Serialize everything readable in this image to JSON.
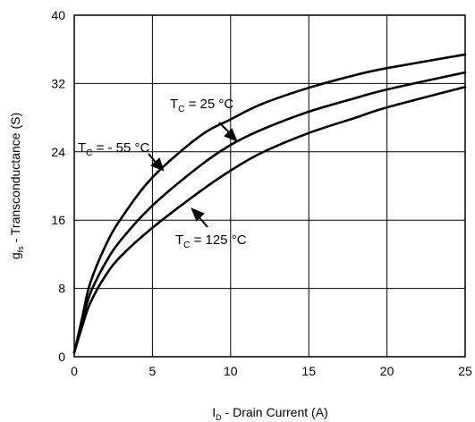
{
  "chart_data": {
    "type": "line",
    "xlabel": {
      "main": "I",
      "sub": "D",
      "rest": " - Drain Current (A)"
    },
    "ylabel": {
      "main": "g",
      "sub": "fs",
      "rest": " - Transconductance (S)"
    },
    "xlim": [
      0,
      25
    ],
    "ylim": [
      0,
      40
    ],
    "x_ticks": [
      "0",
      "5",
      "10",
      "15",
      "20",
      "25"
    ],
    "y_ticks": [
      "0",
      "8",
      "16",
      "24",
      "32",
      "40"
    ],
    "grid": true,
    "series": [
      {
        "name": "T_C = - 55 °C",
        "x": [
          0,
          0.5,
          1,
          2,
          3,
          5,
          8,
          10,
          12,
          15,
          18,
          20,
          25
        ],
        "y": [
          0.5,
          4.5,
          8.5,
          13,
          16.2,
          21,
          25.8,
          27.8,
          29.6,
          31.5,
          33,
          33.8,
          35.4
        ]
      },
      {
        "name": "T_C = 25 °C",
        "x": [
          0,
          0.5,
          1,
          2,
          3,
          5,
          8,
          10,
          12,
          15,
          18,
          20,
          25
        ],
        "y": [
          0.5,
          4,
          7.3,
          11,
          13.7,
          17.7,
          22.3,
          24.8,
          26.6,
          28.7,
          30.3,
          31.3,
          33.3
        ]
      },
      {
        "name": "T_C = 125 °C",
        "x": [
          0,
          0.5,
          1,
          2,
          3,
          5,
          8,
          10,
          12,
          15,
          18,
          20,
          25
        ],
        "y": [
          0.5,
          3.5,
          6.2,
          9.5,
          11.8,
          15.1,
          19.3,
          21.8,
          23.9,
          26.2,
          28,
          29.2,
          31.6
        ]
      }
    ],
    "annotations": [
      {
        "id": "m55",
        "main": "T",
        "sub": "C",
        "rest": " = - 55 °C"
      },
      {
        "id": "p25",
        "main": "T",
        "sub": "C",
        "rest": " = 25 °C"
      },
      {
        "id": "p125",
        "main": "T",
        "sub": "C",
        "rest": " = 125 °C"
      }
    ]
  }
}
